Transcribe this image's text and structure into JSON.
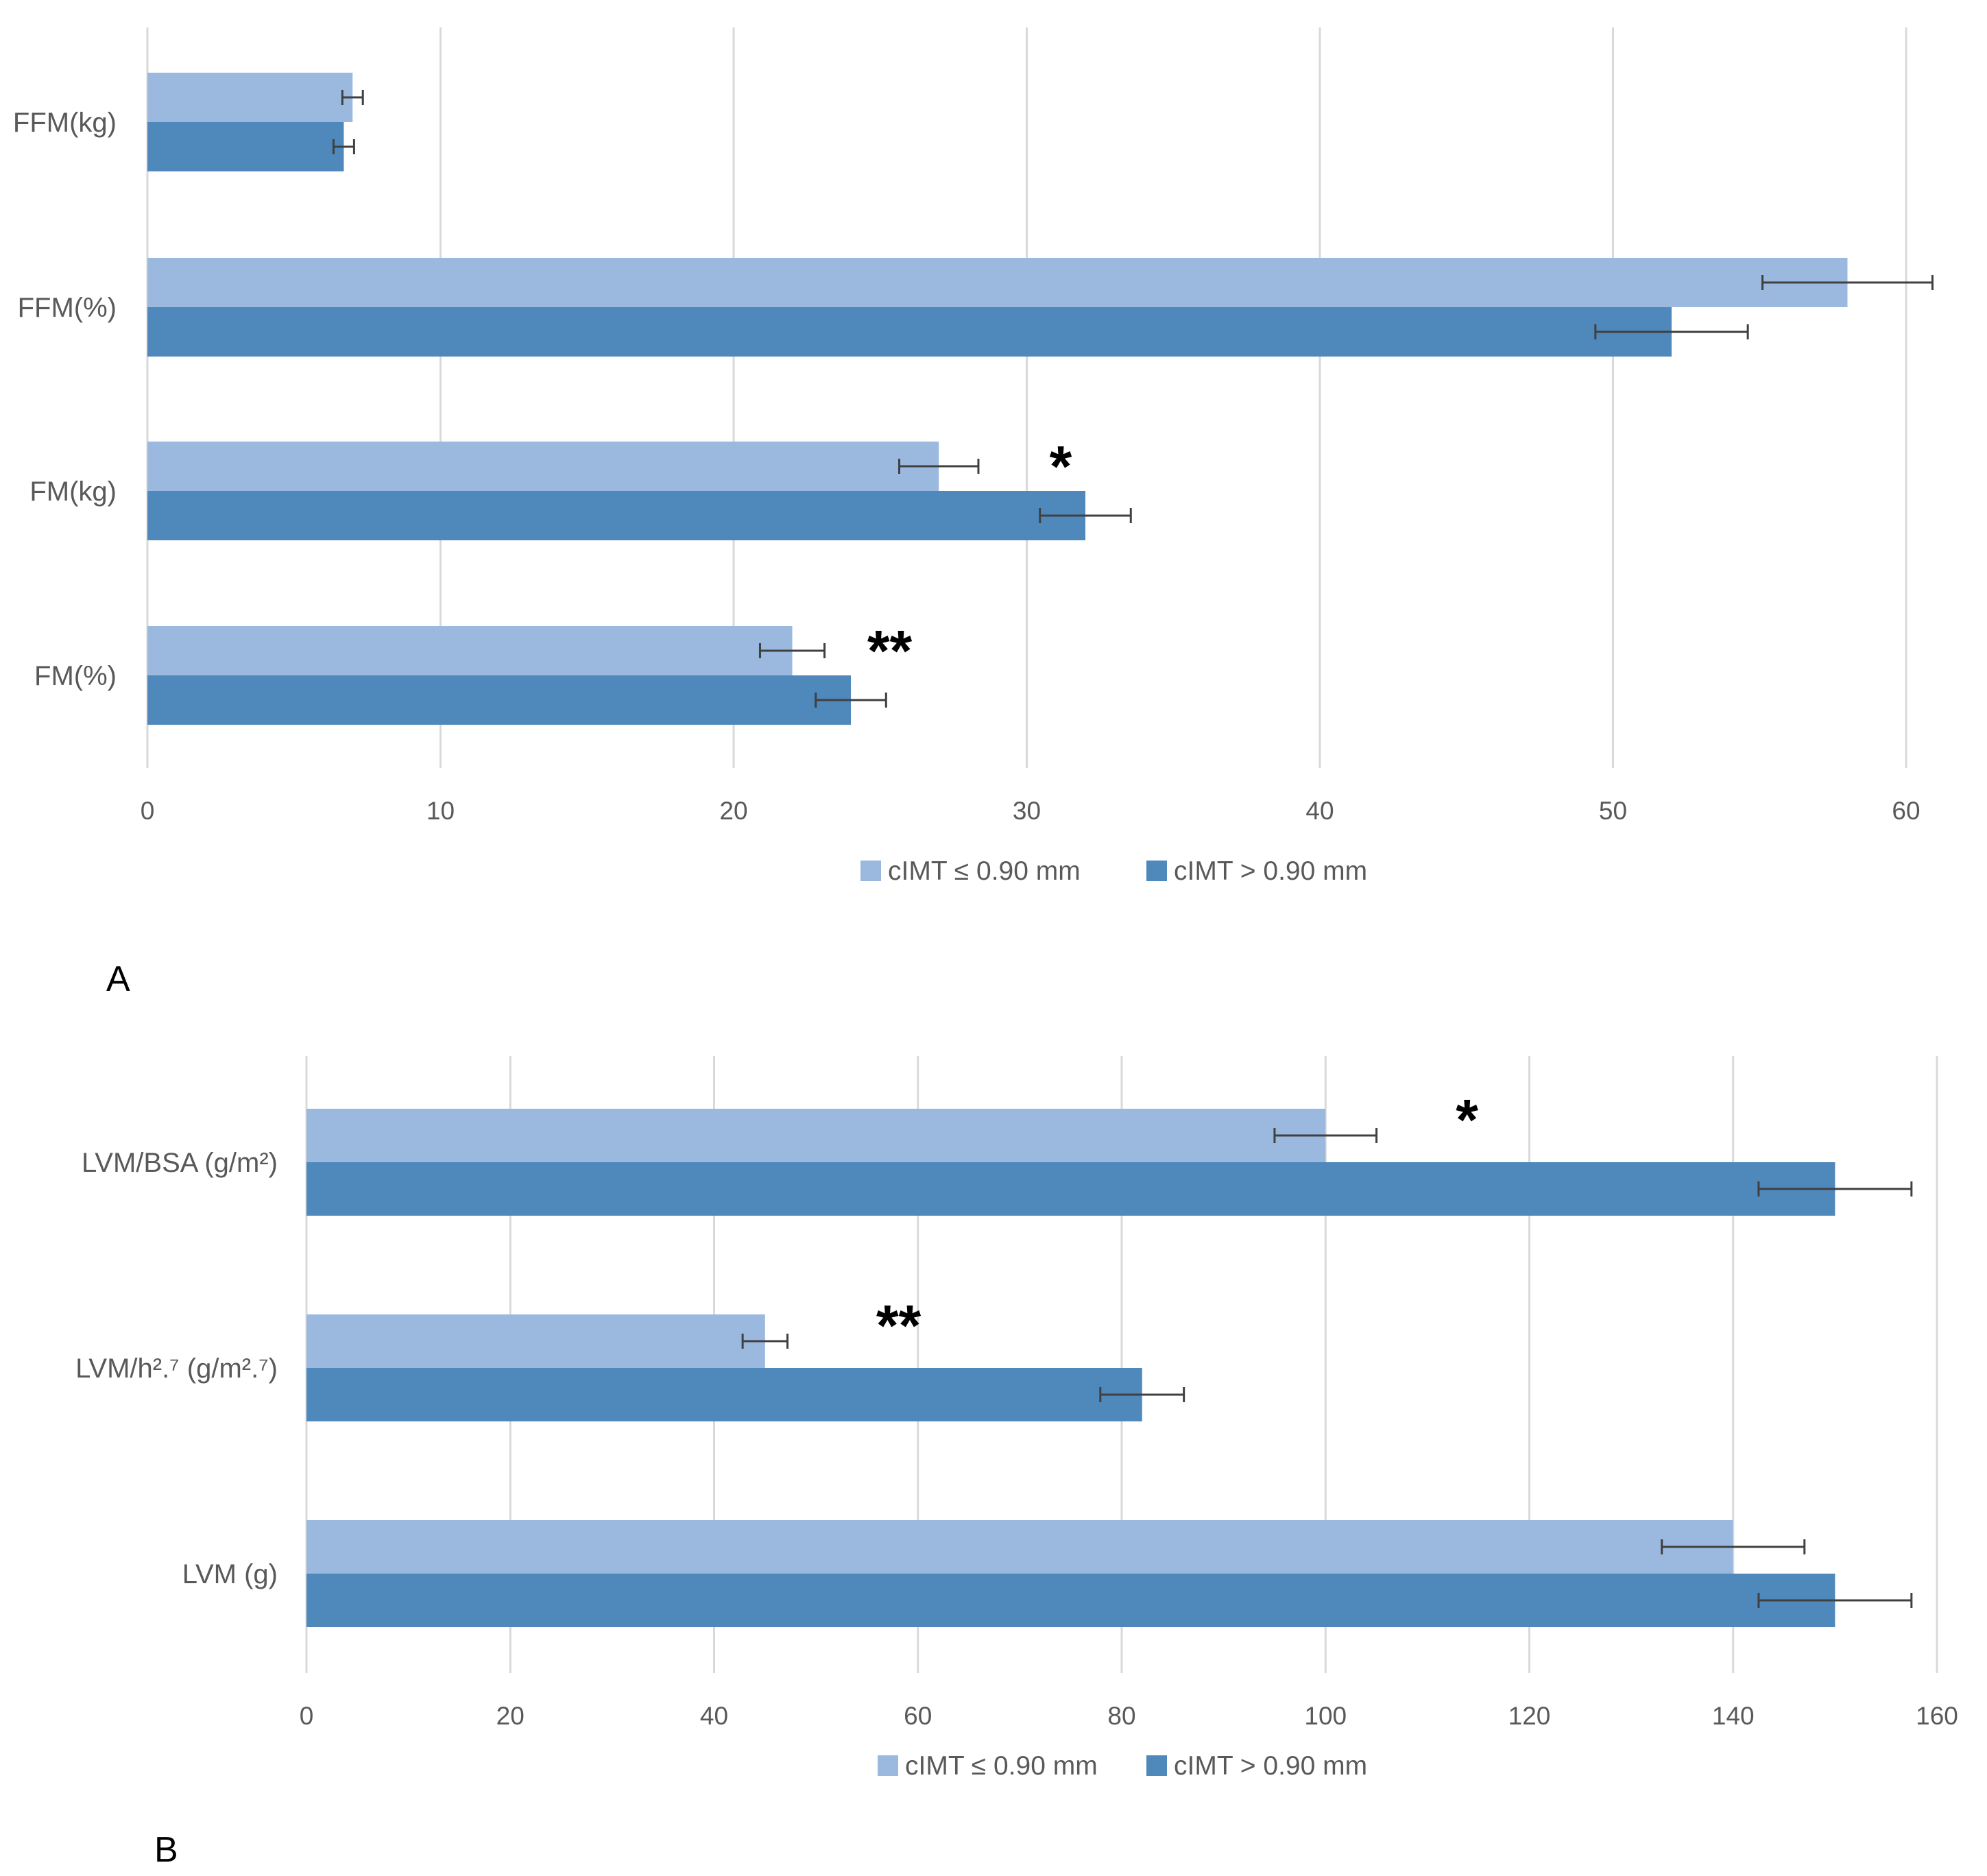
{
  "colors": {
    "series_light": "#9BB9DF",
    "series_dark": "#4F88BB",
    "grid": "#D9D9D9",
    "axis_text": "#595959",
    "error_bar": "#404040"
  },
  "chart_data": [
    {
      "panel": "A",
      "type": "bar",
      "orientation": "horizontal",
      "categories": [
        "FFM(kg)",
        "FFM(%)",
        "FM(kg)",
        "FM(%)"
      ],
      "series": [
        {
          "name": "cIMT ≤ 0.90 mm",
          "values": [
            7,
            58,
            27,
            22
          ],
          "errors": [
            0.35,
            2.9,
            1.35,
            1.1
          ]
        },
        {
          "name": "cIMT > 0.90 mm",
          "values": [
            6.7,
            52,
            32,
            24
          ],
          "errors": [
            0.35,
            2.6,
            1.55,
            1.2
          ]
        }
      ],
      "significance": [
        {
          "category": "FM(kg)",
          "label": "*"
        },
        {
          "category": "FM(%)",
          "label": "**"
        }
      ],
      "xlim": [
        0,
        60
      ],
      "xticks": [
        "0",
        "10",
        "20",
        "30",
        "40",
        "50",
        "60"
      ],
      "grid": true,
      "legend_position": "bottom"
    },
    {
      "panel": "B",
      "type": "bar",
      "orientation": "horizontal",
      "categories": [
        "LVM/BSA  (g/m²)",
        "LVM/h².⁷ (g/m².⁷)",
        "LVM (g)"
      ],
      "series": [
        {
          "name": "cIMT ≤ 0.90 mm",
          "values": [
            100,
            45,
            140
          ],
          "errors": [
            5,
            2.2,
            7
          ]
        },
        {
          "name": "cIMT > 0.90 mm",
          "values": [
            150,
            82,
            150
          ],
          "errors": [
            7.5,
            4.1,
            7.5
          ]
        }
      ],
      "significance": [
        {
          "category": "LVM/BSA  (g/m²)",
          "label": "*"
        },
        {
          "category": "LVM/h².⁷ (g/m².⁷)",
          "label": "**"
        }
      ],
      "xlim": [
        0,
        160
      ],
      "xticks": [
        "0",
        "20",
        "40",
        "60",
        "80",
        "100",
        "120",
        "140",
        "160"
      ],
      "grid": true,
      "legend_position": "bottom"
    }
  ]
}
